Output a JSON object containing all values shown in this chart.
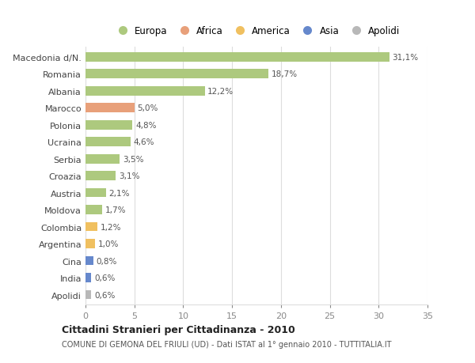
{
  "categories": [
    "Macedonia d/N.",
    "Romania",
    "Albania",
    "Marocco",
    "Polonia",
    "Ucraina",
    "Serbia",
    "Croazia",
    "Austria",
    "Moldova",
    "Colombia",
    "Argentina",
    "Cina",
    "India",
    "Apolidi"
  ],
  "values": [
    31.1,
    18.7,
    12.2,
    5.0,
    4.8,
    4.6,
    3.5,
    3.1,
    2.1,
    1.7,
    1.2,
    1.0,
    0.8,
    0.6,
    0.6
  ],
  "labels": [
    "31,1%",
    "18,7%",
    "12,2%",
    "5,0%",
    "4,8%",
    "4,6%",
    "3,5%",
    "3,1%",
    "2,1%",
    "1,7%",
    "1,2%",
    "1,0%",
    "0,8%",
    "0,6%",
    "0,6%"
  ],
  "colors": [
    "#adc97e",
    "#adc97e",
    "#adc97e",
    "#e8a07a",
    "#adc97e",
    "#adc97e",
    "#adc97e",
    "#adc97e",
    "#adc97e",
    "#adc97e",
    "#f0c060",
    "#f0c060",
    "#6688cc",
    "#6688cc",
    "#b8b8b8"
  ],
  "legend_labels": [
    "Europa",
    "Africa",
    "America",
    "Asia",
    "Apolidi"
  ],
  "legend_colors": [
    "#adc97e",
    "#e8a07a",
    "#f0c060",
    "#6688cc",
    "#b8b8b8"
  ],
  "title": "Cittadini Stranieri per Cittadinanza - 2010",
  "subtitle": "COMUNE DI GEMONA DEL FRIULI (UD) - Dati ISTAT al 1° gennaio 2010 - TUTTITALIA.IT",
  "xlim": [
    0,
    35
  ],
  "xticks": [
    0,
    5,
    10,
    15,
    20,
    25,
    30,
    35
  ],
  "bg_color": "#ffffff",
  "grid_color": "#dddddd",
  "bar_height": 0.55
}
